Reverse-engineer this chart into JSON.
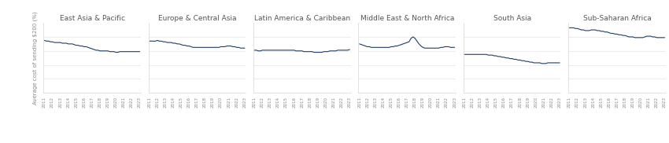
{
  "regions": [
    "East Asia & Pacific",
    "Europe & Central Asia",
    "Latin America & Caribbean",
    "Middle East & North Africa",
    "South Asia",
    "Sub-Saharan Africa"
  ],
  "series": {
    "East Asia & Pacific": [
      7.5,
      7.4,
      7.4,
      7.3,
      7.3,
      7.2,
      7.2,
      7.2,
      7.2,
      7.1,
      7.1,
      7.1,
      7.0,
      7.0,
      7.0,
      6.9,
      6.8,
      6.8,
      6.7,
      6.7,
      6.6,
      6.6,
      6.5,
      6.4,
      6.3,
      6.2,
      6.1,
      6.1,
      6.0,
      6.0,
      6.0,
      6.0,
      6.0,
      5.9,
      5.9,
      5.9,
      5.8,
      5.8,
      5.9,
      5.9,
      5.9,
      5.9,
      5.9,
      5.9,
      5.9,
      5.9,
      5.9,
      5.9,
      5.9
    ],
    "Europe & Central Asia": [
      7.4,
      7.4,
      7.4,
      7.4,
      7.5,
      7.4,
      7.4,
      7.3,
      7.3,
      7.2,
      7.2,
      7.2,
      7.1,
      7.1,
      7.0,
      7.0,
      6.9,
      6.8,
      6.8,
      6.7,
      6.7,
      6.6,
      6.5,
      6.5,
      6.5,
      6.5,
      6.5,
      6.5,
      6.5,
      6.5,
      6.5,
      6.5,
      6.5,
      6.5,
      6.5,
      6.5,
      6.6,
      6.6,
      6.6,
      6.7,
      6.7,
      6.7,
      6.6,
      6.6,
      6.5,
      6.5,
      6.4,
      6.4,
      6.4
    ],
    "Latin America & Caribbean": [
      6.1,
      6.1,
      6.0,
      6.0,
      6.1,
      6.1,
      6.1,
      6.1,
      6.1,
      6.1,
      6.1,
      6.1,
      6.1,
      6.1,
      6.1,
      6.1,
      6.1,
      6.1,
      6.1,
      6.1,
      6.1,
      6.0,
      6.0,
      6.0,
      6.0,
      5.9,
      5.9,
      5.9,
      5.9,
      5.9,
      5.8,
      5.8,
      5.8,
      5.8,
      5.8,
      5.9,
      5.9,
      5.9,
      6.0,
      6.0,
      6.0,
      6.0,
      6.1,
      6.1,
      6.1,
      6.1,
      6.1,
      6.1,
      6.2
    ],
    "Middle East & North Africa": [
      7.0,
      6.9,
      6.8,
      6.7,
      6.6,
      6.6,
      6.5,
      6.5,
      6.5,
      6.5,
      6.5,
      6.5,
      6.5,
      6.5,
      6.5,
      6.5,
      6.6,
      6.6,
      6.7,
      6.7,
      6.8,
      6.9,
      7.0,
      7.1,
      7.2,
      7.3,
      7.8,
      8.0,
      7.8,
      7.4,
      7.0,
      6.7,
      6.5,
      6.4,
      6.4,
      6.4,
      6.4,
      6.4,
      6.4,
      6.4,
      6.4,
      6.5,
      6.5,
      6.6,
      6.6,
      6.6,
      6.5,
      6.5,
      6.5
    ],
    "South Asia": [
      5.5,
      5.5,
      5.5,
      5.5,
      5.5,
      5.5,
      5.5,
      5.5,
      5.5,
      5.5,
      5.5,
      5.5,
      5.4,
      5.4,
      5.4,
      5.3,
      5.3,
      5.2,
      5.2,
      5.1,
      5.1,
      5.0,
      5.0,
      4.9,
      4.9,
      4.8,
      4.8,
      4.7,
      4.7,
      4.6,
      4.6,
      4.5,
      4.5,
      4.4,
      4.4,
      4.3,
      4.3,
      4.3,
      4.3,
      4.2,
      4.2,
      4.2,
      4.3,
      4.3,
      4.3,
      4.3,
      4.3,
      4.3,
      4.3
    ],
    "Sub-Saharan Africa": [
      9.3,
      9.3,
      9.3,
      9.2,
      9.2,
      9.1,
      9.0,
      9.0,
      8.9,
      8.9,
      8.9,
      9.0,
      9.0,
      9.0,
      8.9,
      8.9,
      8.8,
      8.8,
      8.7,
      8.7,
      8.6,
      8.5,
      8.5,
      8.4,
      8.4,
      8.3,
      8.3,
      8.2,
      8.2,
      8.1,
      8.0,
      8.0,
      8.0,
      7.9,
      7.9,
      7.9,
      7.9,
      7.9,
      8.0,
      8.1,
      8.1,
      8.1,
      8.0,
      8.0,
      7.9,
      7.9,
      7.9,
      7.9,
      7.9
    ]
  },
  "n_points": 49,
  "x_start_year": 2011,
  "quarters_per_year": 4,
  "line_color": "#1f3d63",
  "line_width": 0.8,
  "ylabel": "Average cost of sending $200 (%)",
  "ylim": [
    0,
    10
  ],
  "yticks": [
    0,
    2,
    4,
    6,
    8
  ],
  "background_color": "#ffffff",
  "grid_color": "#e0e0e0",
  "title_fontsize": 6.5,
  "label_fontsize": 5.0,
  "tick_fontsize": 4.0,
  "title_color": "#555555",
  "tick_color": "#888888"
}
